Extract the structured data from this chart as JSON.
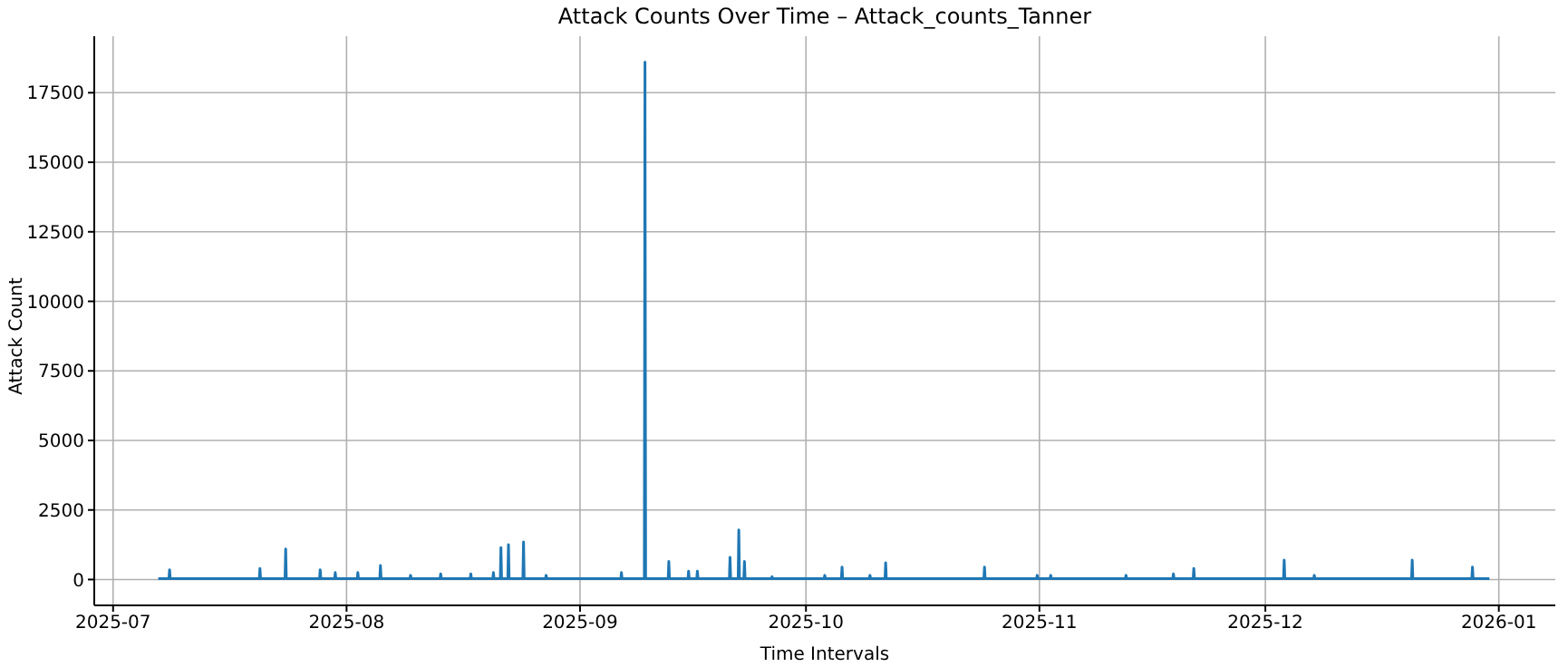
{
  "chart_data": {
    "type": "line",
    "title": "Attack Counts Over Time – Attack_counts_Tanner",
    "xlabel": "Time Intervals",
    "ylabel": "Attack Count",
    "xlim": [
      "2025-06-28T12:00",
      "2026-01-08T12:00"
    ],
    "xticks": [
      "2025-07",
      "2025-08",
      "2025-09",
      "2025-10",
      "2025-11",
      "2025-12",
      "2026-01"
    ],
    "ylim": [
      -930,
      19530
    ],
    "yticks": [
      0,
      2500,
      5000,
      7500,
      10000,
      12500,
      15000,
      17500
    ],
    "grid": true,
    "marker": "none",
    "line_style": "solid",
    "series": [
      {
        "color": "#1f77b4",
        "x": [
          "2025-07-07T00:00",
          "2025-07-08T10:00",
          "2025-07-08T12:00",
          "2025-07-08T14:00",
          "2025-07-20T10:00",
          "2025-07-20T12:00",
          "2025-07-20T14:00",
          "2025-07-23T20:00",
          "2025-07-23T22:00",
          "2025-07-24T00:00",
          "2025-07-28T10:00",
          "2025-07-28T12:00",
          "2025-07-28T14:00",
          "2025-07-30T10:00",
          "2025-07-30T12:00",
          "2025-07-30T14:00",
          "2025-08-02T10:00",
          "2025-08-02T12:00",
          "2025-08-02T14:00",
          "2025-08-05T10:00",
          "2025-08-05T12:00",
          "2025-08-05T14:00",
          "2025-08-09T10:00",
          "2025-08-09T12:00",
          "2025-08-09T14:00",
          "2025-08-13T10:00",
          "2025-08-13T12:00",
          "2025-08-13T14:00",
          "2025-08-17T10:00",
          "2025-08-17T12:00",
          "2025-08-17T14:00",
          "2025-08-20T10:00",
          "2025-08-20T12:00",
          "2025-08-20T14:00",
          "2025-08-21T10:00",
          "2025-08-21T12:00",
          "2025-08-21T14:00",
          "2025-08-22T10:00",
          "2025-08-22T12:00",
          "2025-08-22T14:00",
          "2025-08-24T10:00",
          "2025-08-24T12:00",
          "2025-08-24T14:00",
          "2025-08-27T10:00",
          "2025-08-27T12:00",
          "2025-08-27T14:00",
          "2025-09-06T10:00",
          "2025-09-06T12:00",
          "2025-09-06T14:00",
          "2025-09-09T13:00",
          "2025-09-09T15:00",
          "2025-09-09T17:00",
          "2025-09-12T17:00",
          "2025-09-12T19:00",
          "2025-09-12T21:00",
          "2025-09-15T08:00",
          "2025-09-15T10:00",
          "2025-09-15T12:00",
          "2025-09-16T12:00",
          "2025-09-16T14:00",
          "2025-09-16T16:00",
          "2025-09-20T20:00",
          "2025-09-20T22:00",
          "2025-09-21T00:00",
          "2025-09-22T00:00",
          "2025-09-22T02:00",
          "2025-09-22T04:00",
          "2025-09-22T18:00",
          "2025-09-22T20:00",
          "2025-09-22T22:00",
          "2025-09-26T10:00",
          "2025-09-26T12:00",
          "2025-09-26T14:00",
          "2025-10-03T10:00",
          "2025-10-03T12:00",
          "2025-10-03T14:00",
          "2025-10-05T17:00",
          "2025-10-05T19:00",
          "2025-10-05T21:00",
          "2025-10-09T10:00",
          "2025-10-09T12:00",
          "2025-10-09T14:00",
          "2025-10-11T12:00",
          "2025-10-11T14:00",
          "2025-10-11T16:00",
          "2025-10-24T15:00",
          "2025-10-24T17:00",
          "2025-10-24T19:00",
          "2025-10-31T15:00",
          "2025-10-31T17:00",
          "2025-10-31T19:00",
          "2025-11-02T10:00",
          "2025-11-02T12:00",
          "2025-11-02T14:00",
          "2025-11-12T10:00",
          "2025-11-12T12:00",
          "2025-11-12T14:00",
          "2025-11-18T17:00",
          "2025-11-18T19:00",
          "2025-11-18T21:00",
          "2025-11-21T10:00",
          "2025-11-21T12:00",
          "2025-11-21T14:00",
          "2025-12-03T10:00",
          "2025-12-03T12:00",
          "2025-12-03T14:00",
          "2025-12-07T10:00",
          "2025-12-07T12:00",
          "2025-12-07T14:00",
          "2025-12-20T10:00",
          "2025-12-20T12:00",
          "2025-12-20T14:00",
          "2025-12-28T10:00",
          "2025-12-28T12:00",
          "2025-12-28T14:00",
          "2025-12-30T18:00"
        ],
        "values": [
          30,
          30,
          350,
          30,
          30,
          400,
          30,
          30,
          1100,
          30,
          30,
          350,
          30,
          30,
          250,
          30,
          30,
          250,
          30,
          30,
          500,
          30,
          30,
          150,
          30,
          30,
          200,
          30,
          30,
          200,
          30,
          30,
          250,
          30,
          30,
          1150,
          30,
          30,
          1250,
          30,
          30,
          1350,
          30,
          30,
          150,
          30,
          30,
          250,
          30,
          30,
          18600,
          30,
          30,
          650,
          30,
          30,
          300,
          30,
          30,
          300,
          30,
          30,
          800,
          30,
          30,
          1780,
          30,
          30,
          650,
          30,
          30,
          100,
          30,
          30,
          150,
          30,
          30,
          450,
          30,
          30,
          150,
          30,
          30,
          600,
          30,
          30,
          450,
          30,
          30,
          150,
          30,
          30,
          150,
          30,
          30,
          150,
          30,
          30,
          200,
          30,
          30,
          400,
          30,
          30,
          700,
          30,
          30,
          150,
          30,
          30,
          700,
          30,
          30,
          450,
          30,
          30
        ]
      }
    ]
  }
}
